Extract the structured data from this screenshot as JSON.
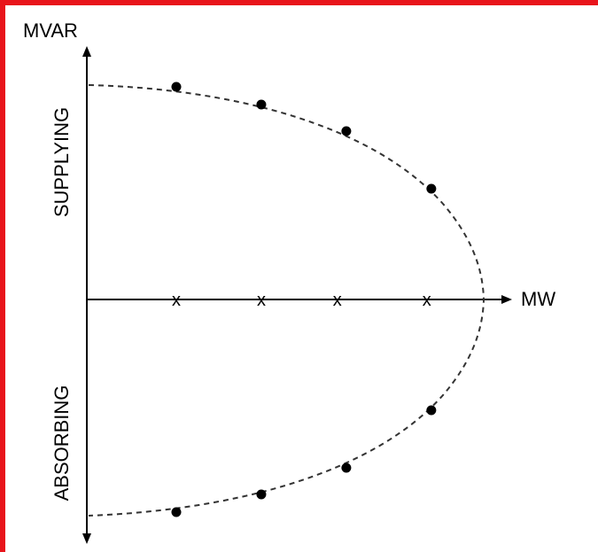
{
  "frame": {
    "border_color": "#e8141b"
  },
  "axes": {
    "y_label": "MVAR",
    "x_label": "MW",
    "upper_region": "SUPPLYING",
    "lower_region": "ABSORBING",
    "axis_color": "#000000"
  },
  "curve": {
    "style": "dashed",
    "color": "#333333"
  },
  "points": {
    "upper": [
      {
        "mw": 1.0,
        "mvar": 2.4
      },
      {
        "mw": 1.95,
        "mvar": 2.2
      },
      {
        "mw": 2.9,
        "mvar": 1.9
      },
      {
        "mw": 3.85,
        "mvar": 1.25
      }
    ],
    "lower": [
      {
        "mw": 1.0,
        "mvar": -2.4
      },
      {
        "mw": 1.95,
        "mvar": -2.2
      },
      {
        "mw": 2.9,
        "mvar": -1.9
      },
      {
        "mw": 3.85,
        "mvar": -1.25
      }
    ],
    "axis_marks": [
      {
        "mw": 1.0
      },
      {
        "mw": 1.95
      },
      {
        "mw": 2.8
      },
      {
        "mw": 3.8
      }
    ],
    "marker_symbol": "x"
  }
}
